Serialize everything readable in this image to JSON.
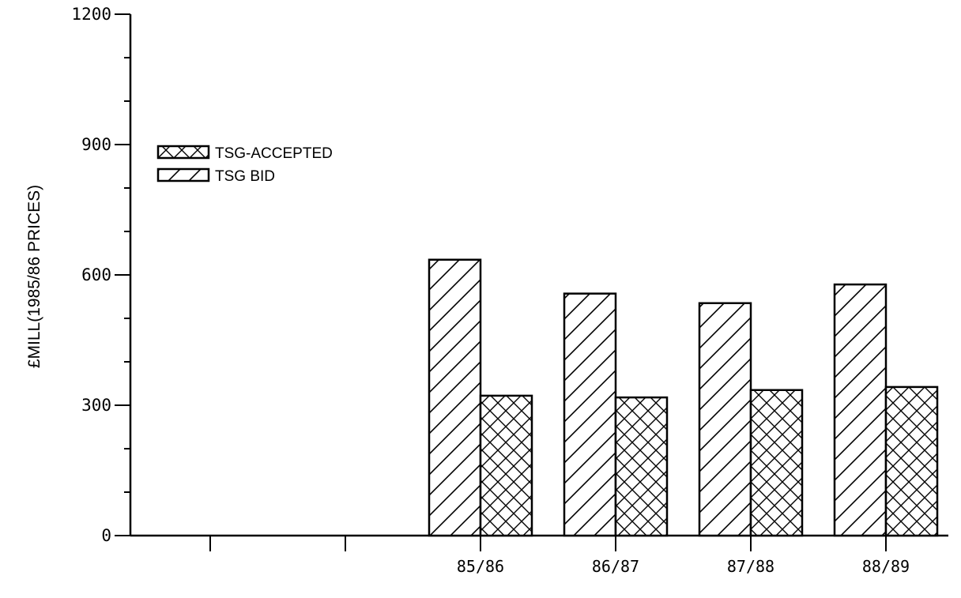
{
  "chart_data": {
    "type": "bar",
    "title": "",
    "xlabel": "",
    "ylabel": "£MILL(1985/86 PRICES)",
    "ylim": [
      0,
      1200
    ],
    "yticks": [
      0,
      300,
      600,
      900,
      1200
    ],
    "y_minor_step": 100,
    "grid": false,
    "legend_position": "upper-left",
    "x_ticks": [
      "",
      "",
      "85/86",
      "86/87",
      "87/88",
      "88/89"
    ],
    "categories": [
      "85/86",
      "86/87",
      "87/88",
      "88/89"
    ],
    "series": [
      {
        "name": "TSG BID",
        "pattern": "diagonal-hatch",
        "values": [
          635,
          557,
          535,
          578
        ]
      },
      {
        "name": "TSG-ACCEPTED",
        "pattern": "cross-hatch",
        "values": [
          322,
          318,
          335,
          342
        ]
      }
    ],
    "legend": [
      "TSG-ACCEPTED",
      "TSG BID"
    ]
  }
}
